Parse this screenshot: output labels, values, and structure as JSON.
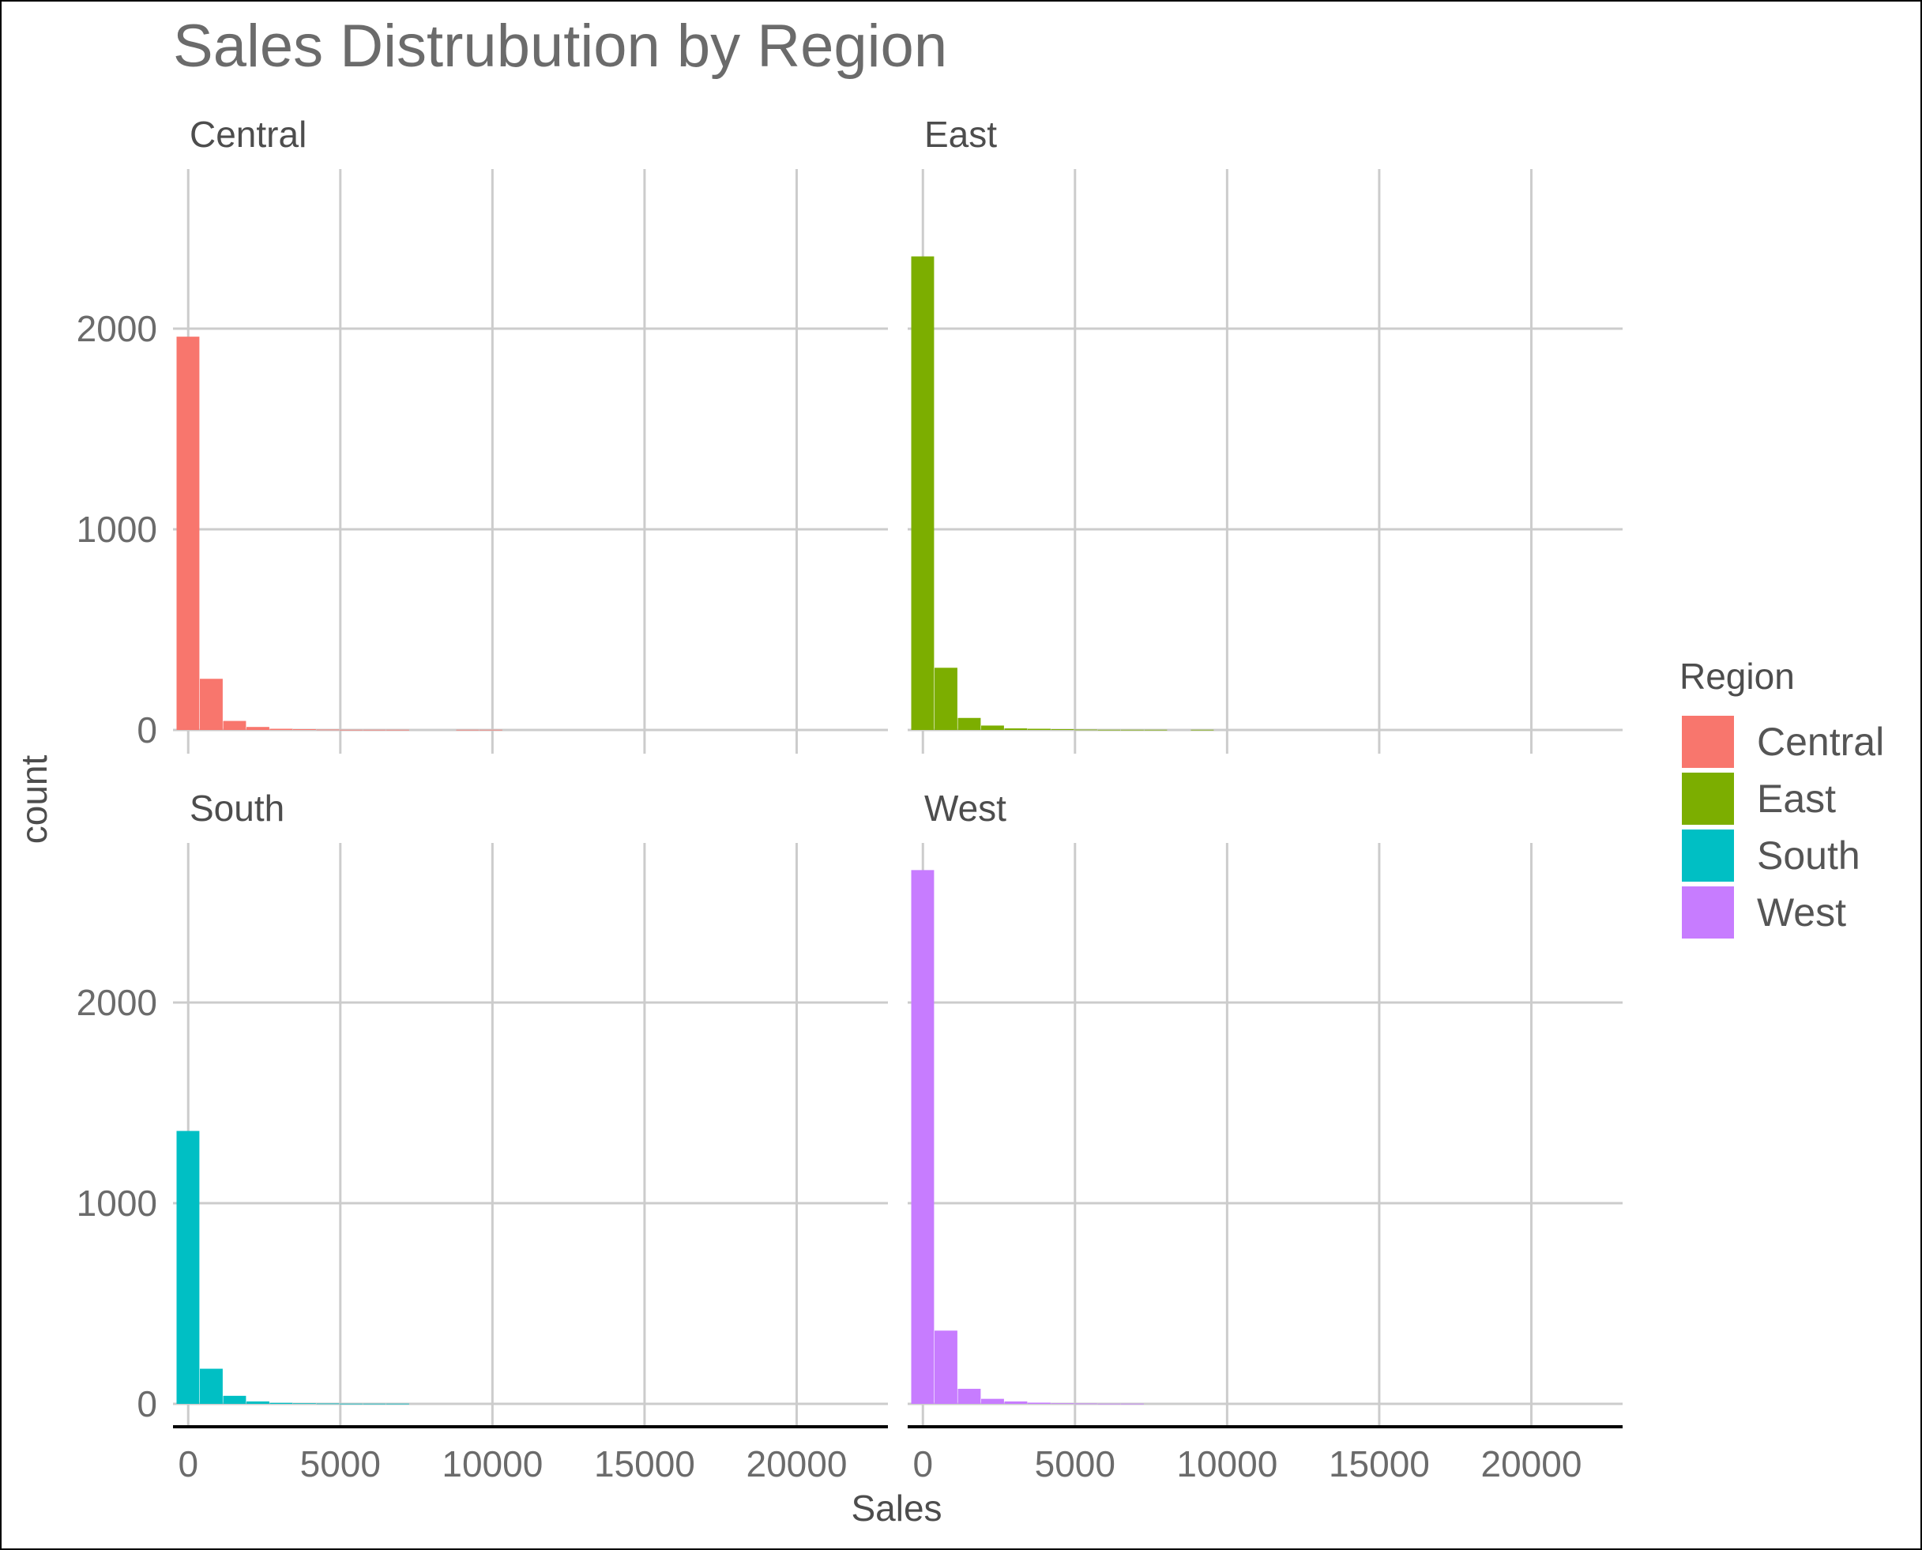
{
  "chart_data": {
    "type": "bar",
    "subtype": "histogram",
    "title": "Sales Distrubution by Region",
    "xlabel": "Sales",
    "ylabel": "count",
    "xlim": [
      -500,
      23000
    ],
    "ylim": [
      0,
      2850
    ],
    "x_ticks": [
      0,
      5000,
      10000,
      15000,
      20000
    ],
    "x_tick_labels": [
      "0",
      "5000",
      "10000",
      "15000",
      "20000"
    ],
    "y_ticks": [
      0,
      1000,
      2000
    ],
    "y_tick_labels": [
      "0",
      "1000",
      "2000"
    ],
    "bin_width": 766,
    "bin_starts": [
      -383,
      383,
      1149,
      1915,
      2681,
      3447,
      4213,
      4979,
      5745,
      6511,
      7277,
      8043,
      8809,
      9575,
      10341
    ],
    "grid": true,
    "legend": {
      "title": "Region",
      "position": "right",
      "entries": [
        "Central",
        "East",
        "South",
        "West"
      ]
    },
    "facets": [
      {
        "name": "Central",
        "color": "#F8766D",
        "counts": [
          1960,
          255,
          45,
          15,
          6,
          4,
          2,
          1,
          1,
          1,
          0,
          0,
          1,
          1,
          0
        ]
      },
      {
        "name": "East",
        "color": "#7CAE00",
        "counts": [
          2360,
          310,
          60,
          22,
          8,
          6,
          4,
          2,
          1,
          1,
          1,
          0,
          1,
          0,
          0
        ]
      },
      {
        "name": "South",
        "color": "#00BFC4",
        "counts": [
          1360,
          175,
          40,
          12,
          5,
          3,
          2,
          1,
          1,
          1,
          0,
          0,
          0,
          0,
          0
        ]
      },
      {
        "name": "West",
        "color": "#C77CFF",
        "counts": [
          2660,
          365,
          75,
          25,
          12,
          6,
          3,
          2,
          1,
          1,
          0,
          0,
          0,
          0,
          0
        ]
      }
    ]
  }
}
